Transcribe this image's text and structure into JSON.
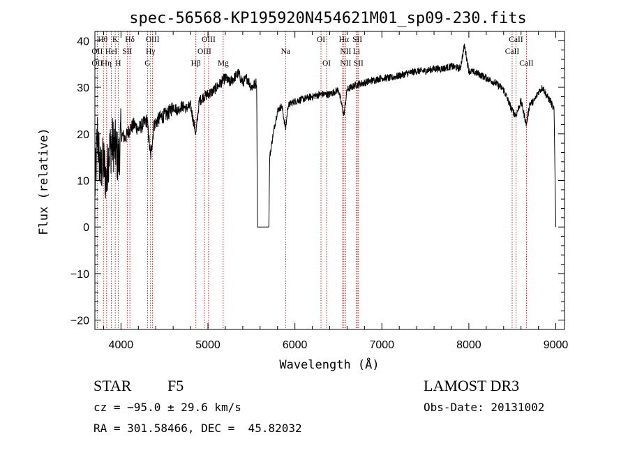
{
  "chart_data": {
    "type": "line",
    "title": "spec-56568-KP195920N454621M01_sp09-230.fits",
    "xlabel": "Wavelength (Å)",
    "ylabel": "Flux (relative)",
    "xlim": [
      3700,
      9100
    ],
    "ylim": [
      -22,
      42
    ],
    "xticks": [
      4000,
      5000,
      6000,
      7000,
      8000,
      9000
    ],
    "xtick_labels": [
      "4000",
      "5000",
      "6000",
      "7000",
      "8000",
      "9000"
    ],
    "yticks": [
      -20,
      -10,
      0,
      10,
      20,
      30,
      40
    ],
    "ytick_labels": [
      "−20",
      "−10",
      "0",
      "10",
      "20",
      "30",
      "40"
    ],
    "series": [
      {
        "name": "flux",
        "x": [
          3700,
          3730,
          3760,
          3800,
          3830,
          3860,
          3900,
          3940,
          3970,
          4000,
          4050,
          4100,
          4150,
          4200,
          4250,
          4300,
          4340,
          4380,
          4450,
          4500,
          4550,
          4600,
          4650,
          4700,
          4750,
          4800,
          4861,
          4900,
          4950,
          5000,
          5050,
          5100,
          5150,
          5200,
          5250,
          5300,
          5350,
          5400,
          5450,
          5500,
          5560,
          5570,
          5700,
          5710,
          5750,
          5800,
          5850,
          5893,
          5920,
          5950,
          6000,
          6100,
          6200,
          6300,
          6400,
          6500,
          6563,
          6600,
          6700,
          6800,
          6900,
          7000,
          7100,
          7200,
          7300,
          7400,
          7500,
          7600,
          7700,
          7800,
          7900,
          7950,
          8000,
          8100,
          8200,
          8300,
          8400,
          8498,
          8542,
          8600,
          8662,
          8700,
          8750,
          8800,
          8850,
          8900,
          8940,
          8980,
          9000
        ],
        "y": [
          8,
          20,
          12,
          14,
          10,
          16,
          18,
          17,
          14,
          20,
          19,
          21,
          22,
          21,
          22,
          23,
          15,
          22,
          23.5,
          24,
          24.5,
          26,
          25,
          26,
          25.5,
          26,
          20,
          27,
          28,
          28.5,
          29,
          30,
          31,
          32,
          31,
          32,
          33,
          31,
          32,
          30,
          31,
          0,
          0,
          15,
          20,
          25,
          26,
          21,
          26,
          26.5,
          27,
          27.5,
          28,
          28.5,
          28.5,
          29.5,
          24,
          29.5,
          30.5,
          31,
          31.5,
          32,
          32,
          32.5,
          33,
          33.5,
          33.5,
          34,
          34,
          34.5,
          34,
          39,
          33.5,
          33,
          32,
          31,
          29.5,
          25,
          24,
          27,
          22,
          26.5,
          27,
          29,
          30,
          28,
          27,
          25,
          0
        ]
      }
    ],
    "lines": [
      {
        "label": "OII",
        "wavelength": 3727
      },
      {
        "label": "Hθ",
        "wavelength": 3798
      },
      {
        "label": "Hη",
        "wavelength": 3835
      },
      {
        "label": "HeI",
        "wavelength": 3889
      },
      {
        "label": "K",
        "wavelength": 3934
      },
      {
        "label": "H",
        "wavelength": 3968
      },
      {
        "label": "SII",
        "wavelength": 4072
      },
      {
        "label": "Hδ",
        "wavelength": 4102
      },
      {
        "label": "G",
        "wavelength": 4305
      },
      {
        "label": "Hγ",
        "wavelength": 4340
      },
      {
        "label": "OIII",
        "wavelength": 4363
      },
      {
        "label": "Hβ",
        "wavelength": 4861
      },
      {
        "label": "OIII",
        "wavelength": 4959
      },
      {
        "label": "OIII",
        "wavelength": 5007
      },
      {
        "label": "Mg",
        "wavelength": 5175
      },
      {
        "label": "Na",
        "wavelength": 5893
      },
      {
        "label": "OI",
        "wavelength": 6300
      },
      {
        "label": "OI",
        "wavelength": 6364
      },
      {
        "label": "NII",
        "wavelength": 6548
      },
      {
        "label": "Hα",
        "wavelength": 6563
      },
      {
        "label": "NII",
        "wavelength": 6583
      },
      {
        "label": "Li",
        "wavelength": 6708
      },
      {
        "label": "SII",
        "wavelength": 6717
      },
      {
        "label": "SII",
        "wavelength": 6731
      },
      {
        "label": "CaII",
        "wavelength": 8498
      },
      {
        "label": "CaII",
        "wavelength": 8542
      },
      {
        "label": "CaII",
        "wavelength": 8662
      }
    ],
    "line_tags": [
      {
        "text": "Hθ",
        "wavelength": 3790,
        "row": 0
      },
      {
        "text": "K",
        "wavelength": 3934,
        "row": 0
      },
      {
        "text": "Hδ",
        "wavelength": 4102,
        "row": 0
      },
      {
        "text": "OIII",
        "wavelength": 4363,
        "row": 0
      },
      {
        "text": "OIII",
        "wavelength": 5007,
        "row": 0
      },
      {
        "text": "OI",
        "wavelength": 6300,
        "row": 0
      },
      {
        "text": "Hα",
        "wavelength": 6563,
        "row": 0
      },
      {
        "text": "SII",
        "wavelength": 6717,
        "row": 0
      },
      {
        "text": "CaII",
        "wavelength": 8542,
        "row": 0
      },
      {
        "text": "OII",
        "wavelength": 3727,
        "row": 1
      },
      {
        "text": "HeI",
        "wavelength": 3889,
        "row": 1
      },
      {
        "text": "SII",
        "wavelength": 4072,
        "row": 1
      },
      {
        "text": "Hγ",
        "wavelength": 4340,
        "row": 1
      },
      {
        "text": "OIII",
        "wavelength": 4959,
        "row": 1
      },
      {
        "text": "Na",
        "wavelength": 5893,
        "row": 1
      },
      {
        "text": "NII",
        "wavelength": 6583,
        "row": 1
      },
      {
        "text": "Li",
        "wavelength": 6708,
        "row": 1
      },
      {
        "text": "CaII",
        "wavelength": 8498,
        "row": 1
      },
      {
        "text": "OII",
        "wavelength": 3727,
        "row": 2
      },
      {
        "text": "Hη",
        "wavelength": 3835,
        "row": 2
      },
      {
        "text": "H",
        "wavelength": 3968,
        "row": 2
      },
      {
        "text": "G",
        "wavelength": 4305,
        "row": 2
      },
      {
        "text": "Hβ",
        "wavelength": 4861,
        "row": 2
      },
      {
        "text": "Mg",
        "wavelength": 5175,
        "row": 2
      },
      {
        "text": "OI",
        "wavelength": 6364,
        "row": 2
      },
      {
        "text": "NII",
        "wavelength": 6583,
        "row": 2
      },
      {
        "text": "SII",
        "wavelength": 6731,
        "row": 2
      },
      {
        "text": "CaII",
        "wavelength": 8662,
        "row": 2
      }
    ],
    "grid": false,
    "line_color": "#000000",
    "marker_line_color": "#cc0000"
  },
  "info": {
    "object_type": "STAR",
    "subclass": "F5",
    "survey": "LAMOST DR3",
    "redshift": "cz = −95.0 ± 29.6 km/s",
    "obs_date": "Obs-Date: 20131002",
    "coords": "RA = 301.58466, DEC =  45.82032"
  }
}
